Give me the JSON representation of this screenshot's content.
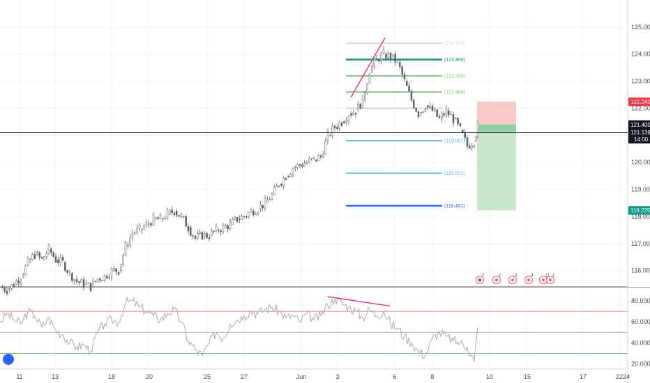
{
  "chart_data": {
    "type": "candlestick",
    "price_axis": {
      "ticks": [
        "125.000",
        "124.000",
        "123.000",
        "122.000",
        "121.000",
        "120.000",
        "119.000",
        "118.000",
        "117.000",
        "116.000"
      ],
      "tick_values": [
        125,
        124,
        123,
        122,
        121,
        120,
        119,
        118,
        117,
        116
      ],
      "range": [
        115.4,
        126.0
      ]
    },
    "time_axis": {
      "ticks": [
        "11",
        "13",
        "18",
        "20",
        "25",
        "27",
        "Jun",
        "3",
        "6",
        "8",
        "10",
        "15",
        "17",
        "22",
        "24"
      ]
    },
    "price_series": {
      "name": "",
      "x": [
        0,
        10,
        20,
        30,
        40,
        50,
        60,
        70,
        80,
        90,
        100,
        110,
        120,
        130,
        140,
        150,
        160,
        170,
        180,
        190,
        200,
        210,
        220,
        230,
        240,
        250,
        260,
        270,
        280,
        290,
        300,
        310,
        320,
        330,
        340,
        350,
        360,
        370,
        380,
        390,
        400,
        410,
        420,
        430,
        440,
        450,
        460,
        470,
        480,
        490,
        500,
        510,
        520,
        530,
        540,
        550,
        560,
        570,
        580,
        590,
        600,
        610,
        620,
        630,
        640,
        650,
        660,
        670,
        680,
        685
      ],
      "close": [
        115.4,
        115.3,
        115.5,
        115.8,
        116.3,
        116.6,
        116.4,
        116.8,
        116.4,
        116.3,
        115.9,
        115.6,
        115.5,
        115.4,
        115.7,
        115.8,
        116.0,
        116.0,
        116.9,
        117.4,
        117.5,
        117.7,
        117.9,
        117.9,
        118.1,
        118.2,
        118.0,
        117.6,
        117.2,
        117.3,
        117.3,
        117.5,
        117.6,
        117.7,
        117.9,
        118.0,
        118.2,
        118.3,
        118.5,
        118.8,
        119.2,
        119.5,
        119.8,
        119.9,
        120.0,
        120.1,
        120.2,
        121.0,
        121.3,
        121.5,
        121.8,
        121.9,
        122.3,
        123.4,
        123.8,
        124.0,
        123.9,
        123.7,
        123.0,
        122.3,
        121.8,
        122.1,
        121.9,
        121.6,
        121.9,
        121.6,
        121.2,
        120.6,
        120.8,
        121.35
      ]
    },
    "current_price": "121.138",
    "current_price_value": 121.138,
    "countdown": "14:00",
    "horizontal_line_price": 121.1,
    "fib_levels": [
      {
        "label": "(124.400)",
        "value": 124.4,
        "color": "#d6d6d6"
      },
      {
        "label": "(123.800)",
        "value": 123.8,
        "color": "#089981"
      },
      {
        "label": "(123.200)",
        "value": 123.2,
        "color": "#81c784"
      },
      {
        "label": "(122.600)",
        "value": 122.6,
        "color": "#81c784"
      },
      {
        "label": "",
        "value": 122.0,
        "color": "#d6d6d6"
      },
      {
        "label": "(120.801)",
        "value": 120.801,
        "color": "#64b5f6"
      },
      {
        "label": "(119.601)",
        "value": 119.601,
        "color": "#64b5f6"
      },
      {
        "label": "(118.401)",
        "value": 118.401,
        "color": "#2962ff"
      }
    ],
    "position_tool": {
      "stop_label": "122.240",
      "stop_value": 122.24,
      "entry_label": "121.400",
      "entry_value": 121.4,
      "target_label": "118.225",
      "target_value": 118.225,
      "loss_color": "#f7c9c9",
      "profit_color": "#c8e6c9"
    },
    "rsi_axis": {
      "ticks": [
        "80.000",
        "60.000",
        "40.000",
        "20.000"
      ],
      "tick_values": [
        80,
        60,
        40,
        20
      ],
      "range": [
        15,
        92
      ],
      "levels": [
        {
          "value": 70,
          "color": "#ef5350"
        },
        {
          "value": 50,
          "color": "#9e9e9e"
        },
        {
          "value": 30,
          "color": "#4caf50"
        }
      ]
    },
    "rsi_series": {
      "name": "",
      "x": [
        0,
        10,
        20,
        30,
        40,
        50,
        60,
        70,
        80,
        90,
        100,
        110,
        120,
        130,
        140,
        150,
        160,
        170,
        180,
        190,
        200,
        210,
        220,
        230,
        240,
        250,
        260,
        270,
        280,
        290,
        300,
        310,
        320,
        330,
        340,
        350,
        360,
        370,
        380,
        390,
        400,
        410,
        420,
        430,
        440,
        450,
        460,
        470,
        480,
        490,
        500,
        510,
        520,
        530,
        540,
        550,
        560,
        570,
        580,
        590,
        600,
        610,
        620,
        630,
        640,
        650,
        660,
        670,
        680,
        685
      ],
      "values": [
        60,
        68,
        62,
        58,
        70,
        66,
        55,
        64,
        52,
        48,
        40,
        36,
        38,
        32,
        50,
        58,
        62,
        60,
        78,
        80,
        74,
        70,
        66,
        62,
        68,
        72,
        60,
        42,
        34,
        28,
        40,
        50,
        44,
        58,
        62,
        66,
        70,
        68,
        72,
        74,
        70,
        64,
        66,
        60,
        68,
        62,
        66,
        76,
        82,
        78,
        74,
        70,
        64,
        72,
        66,
        70,
        58,
        54,
        46,
        40,
        32,
        28,
        44,
        50,
        46,
        42,
        40,
        36,
        22,
        55
      ]
    },
    "divergence_lines": [
      {
        "pane": "price",
        "from": {
          "x": 503,
          "y": 122.4
        },
        "to": {
          "x": 552,
          "y": 124.6
        },
        "color": "#e91e63"
      },
      {
        "pane": "rsi",
        "from": {
          "x": 470,
          "y": 84
        },
        "to": {
          "x": 560,
          "y": 75
        },
        "color": "#e91e63"
      }
    ],
    "event_badges": [
      "2",
      "2",
      "3",
      "4",
      "11",
      "1"
    ]
  },
  "colors": {
    "up": "#26a69a",
    "down": "#ef5350",
    "axis_bg": "#ffffff",
    "price_label_bg": "#131722",
    "stop_bg": "#f23645",
    "target_bg": "#089981",
    "grid": "#f0f3fa",
    "rsi_line": "#b0b0b0",
    "candle": "#5d606b"
  },
  "logo": "tradingview-logo-icon"
}
